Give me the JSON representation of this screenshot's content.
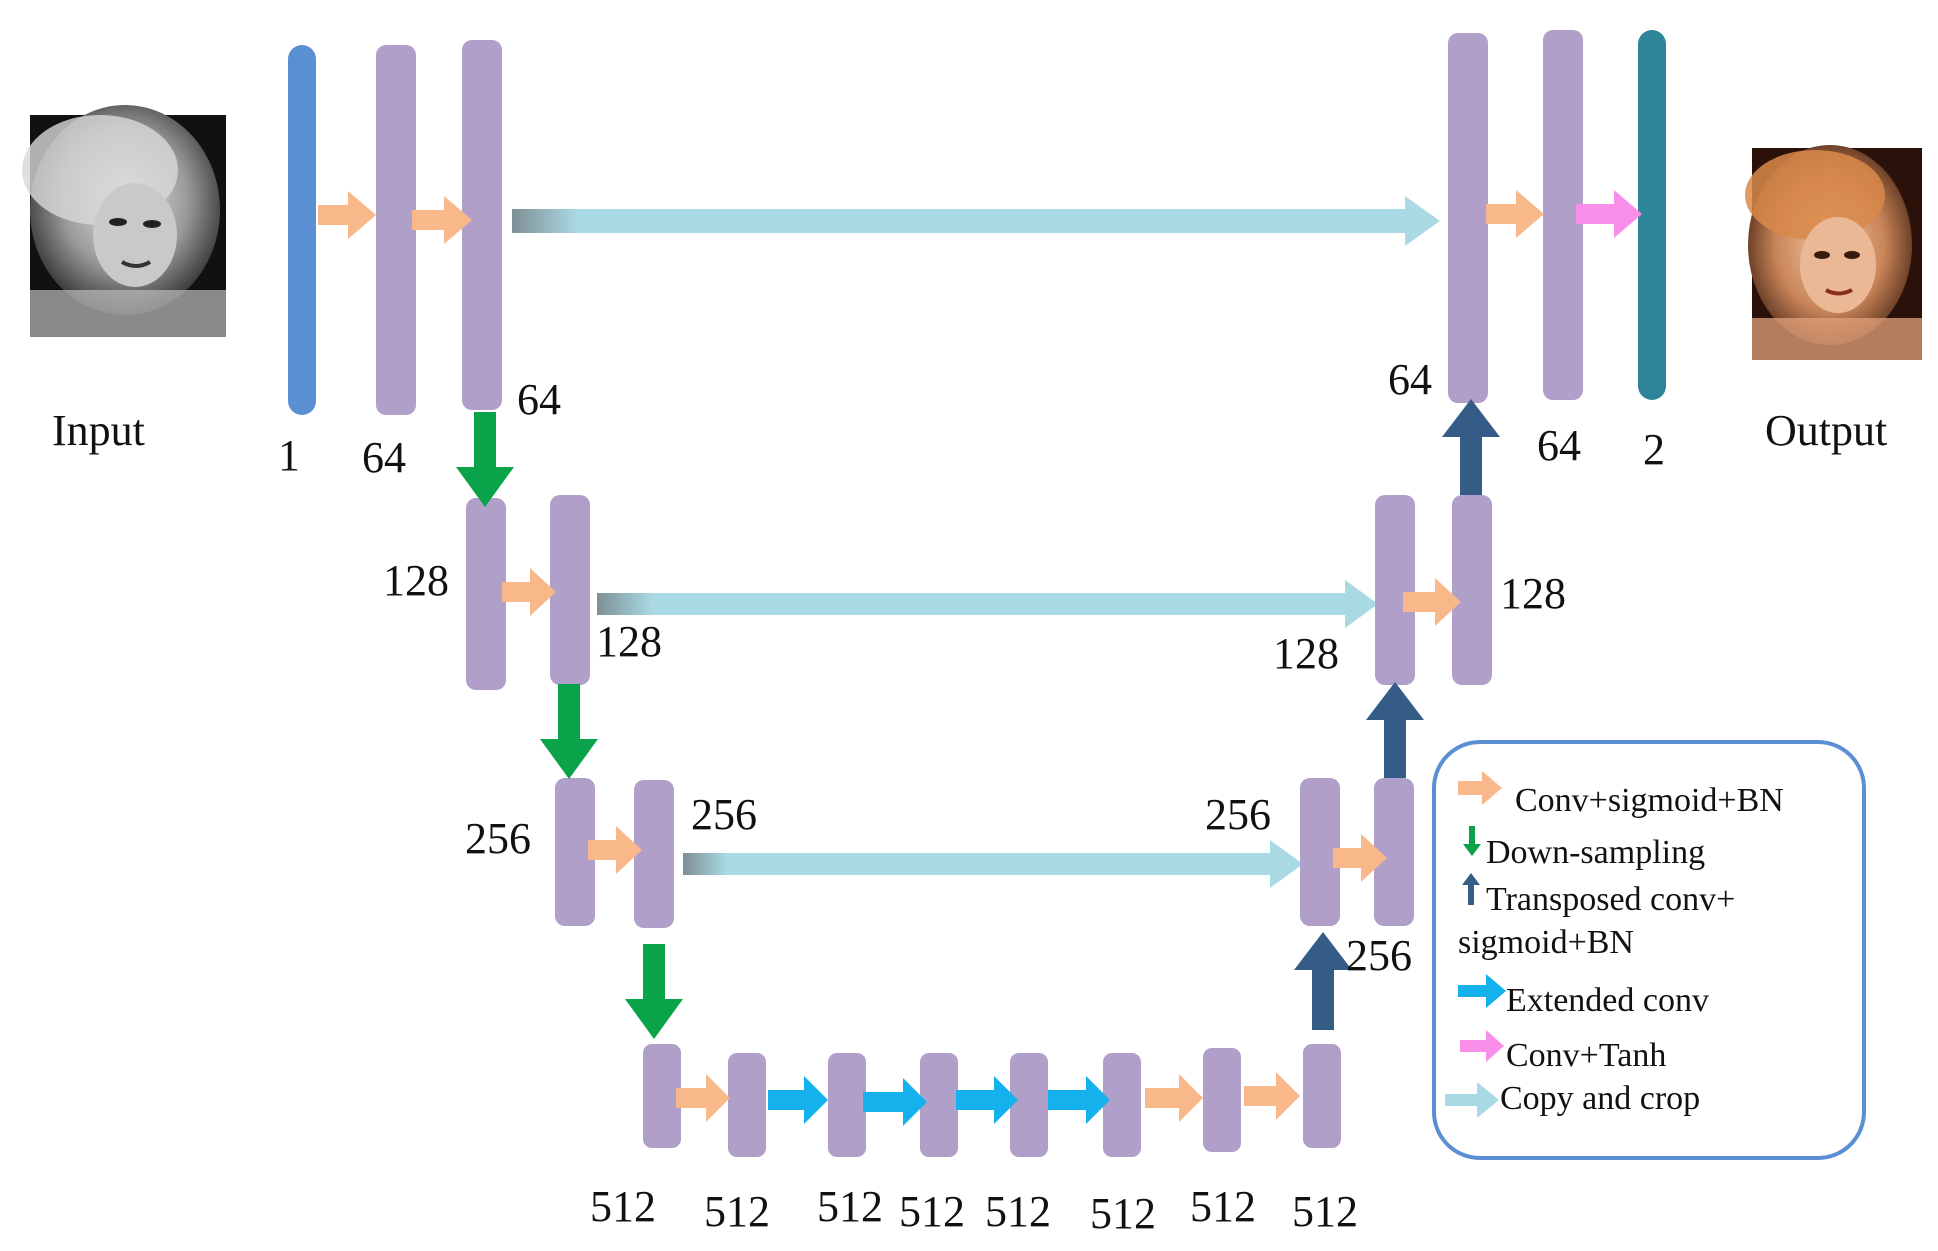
{
  "input_label": "Input",
  "output_label": "Output",
  "level1": {
    "label_1": "1",
    "label_64a": "64",
    "label_64b": "64",
    "label_64c": "64",
    "label_64d": "64",
    "label_2": "2"
  },
  "level2": {
    "left_a": "128",
    "left_b": "128",
    "right_a": "128",
    "right_b": "128"
  },
  "level3": {
    "left_a": "256",
    "left_b": "256",
    "right_a": "256",
    "right_b": "256"
  },
  "bottom": {
    "labels": [
      "512",
      "512",
      "512",
      "512",
      "512",
      "512",
      "512",
      "512"
    ]
  },
  "legend": {
    "conv": "Conv+sigmoid+BN",
    "down": "Down-sampling",
    "transposed_1": "Transposed conv+",
    "transposed_2": "sigmoid+BN",
    "extended": "Extended conv",
    "tanh": "Conv+Tanh",
    "copy": "Copy and crop"
  },
  "colors": {
    "input_layer": "#5b8fd4",
    "feature_map": "#b09fc9",
    "output_layer": "#2e8499",
    "conv_arrow": "#f8b88a",
    "down_arrow": "#0aa34a",
    "up_arrow": "#355b87",
    "extended_arrow": "#14b1ec",
    "tanh_arrow": "#f88ee8",
    "copy_arrow": "#a9d9e2"
  }
}
